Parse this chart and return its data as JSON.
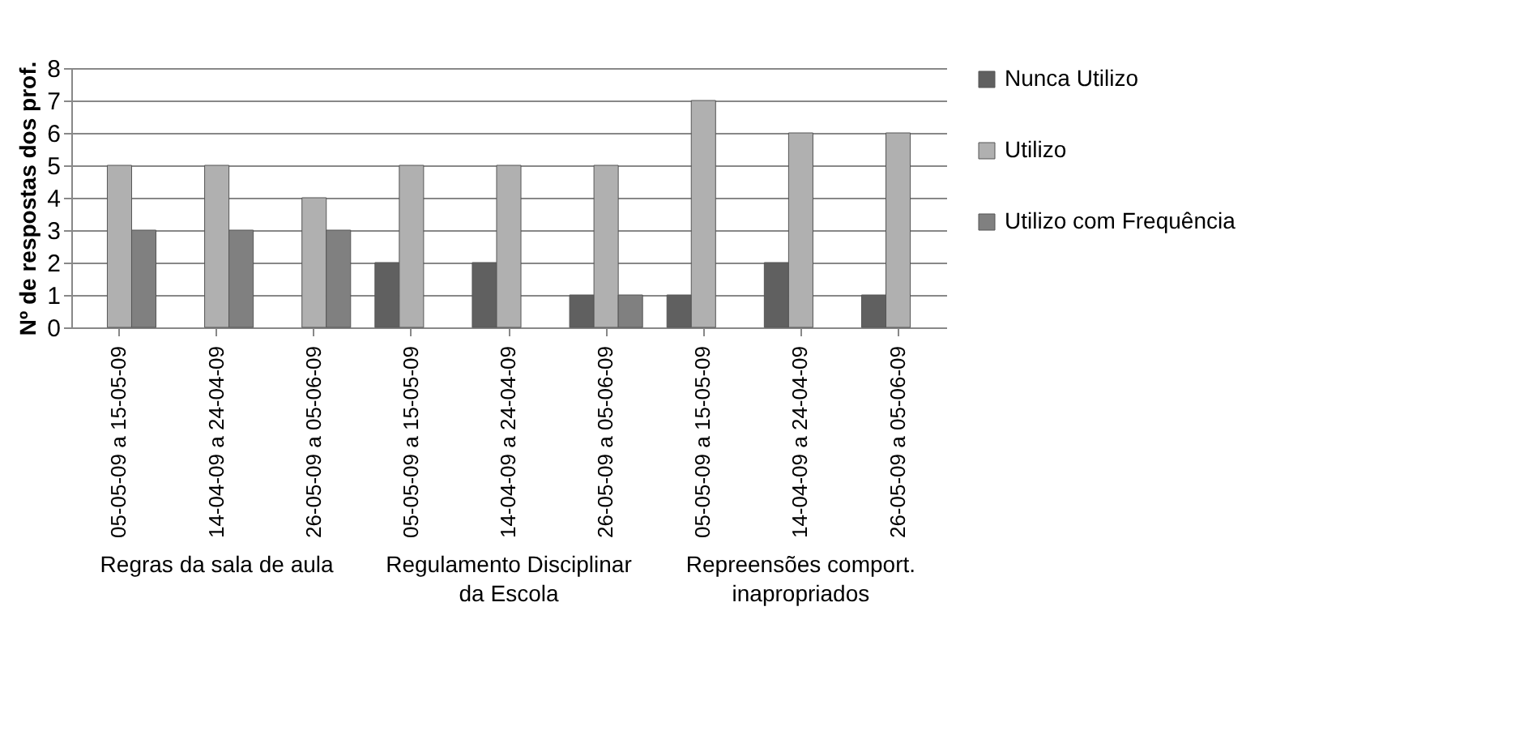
{
  "chart_data": {
    "type": "bar",
    "ylabel": "Nº de respostas dos prof.",
    "categories": [
      "05-05-09 a 15-05-09",
      "14-04-09 a 24-04-09",
      "26-05-09 a 05-06-09",
      "05-05-09 a 15-05-09",
      "14-04-09 a 24-04-09",
      "26-05-09 a 05-06-09",
      "05-05-09 a 15-05-09",
      "14-04-09 a 24-04-09",
      "26-05-09 a 05-06-09"
    ],
    "series": [
      {
        "name": "Nunca Utilizo",
        "color": "#606060",
        "values": [
          null,
          null,
          null,
          2,
          2,
          1,
          1,
          2,
          1
        ]
      },
      {
        "name": "Utilizo",
        "color": "#b0b0b0",
        "values": [
          5,
          5,
          4,
          5,
          5,
          5,
          7,
          6,
          6
        ]
      },
      {
        "name": "Utilizo com Frequência",
        "color": "#808080",
        "values": [
          3,
          3,
          3,
          null,
          null,
          1,
          null,
          null,
          null
        ]
      }
    ],
    "annotations": [
      "Regras da sala de aula",
      "Regulamento Disciplinar da Escola",
      "Repreensões comport. inapropriados"
    ],
    "ylim": [
      0,
      8
    ],
    "yticks": [
      0,
      1,
      2,
      3,
      4,
      5,
      6,
      7,
      8
    ],
    "grid": "y",
    "legend": "right"
  }
}
